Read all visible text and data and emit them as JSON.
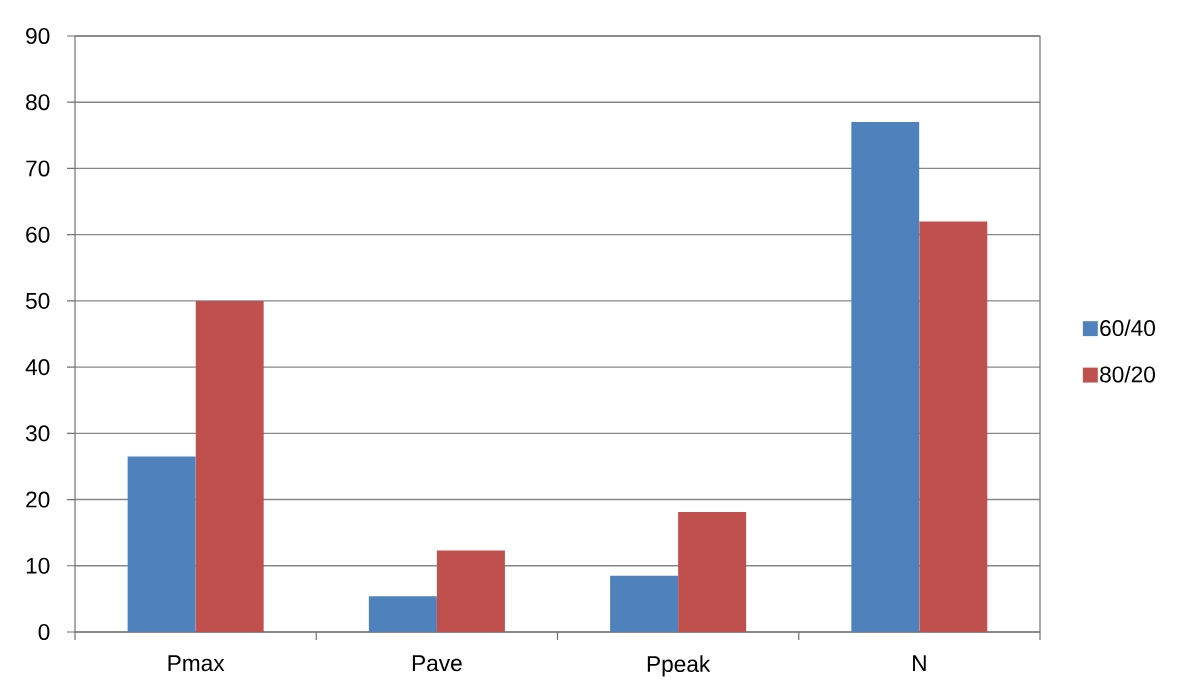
{
  "chart_data": {
    "type": "bar",
    "categories": [
      "Pmax",
      "Pave",
      "Ppeak",
      "N"
    ],
    "series": [
      {
        "name": "60/40",
        "color": "#4f81bd",
        "values": [
          26.5,
          5.4,
          8.5,
          77.0
        ]
      },
      {
        "name": "80/20",
        "color": "#c0504d",
        "values": [
          50.0,
          12.3,
          18.1,
          62.0
        ]
      }
    ],
    "ylim": [
      0,
      90
    ],
    "yticks": [
      0,
      10,
      20,
      30,
      40,
      50,
      60,
      70,
      80,
      90
    ],
    "grid": "y",
    "legend": "right"
  }
}
